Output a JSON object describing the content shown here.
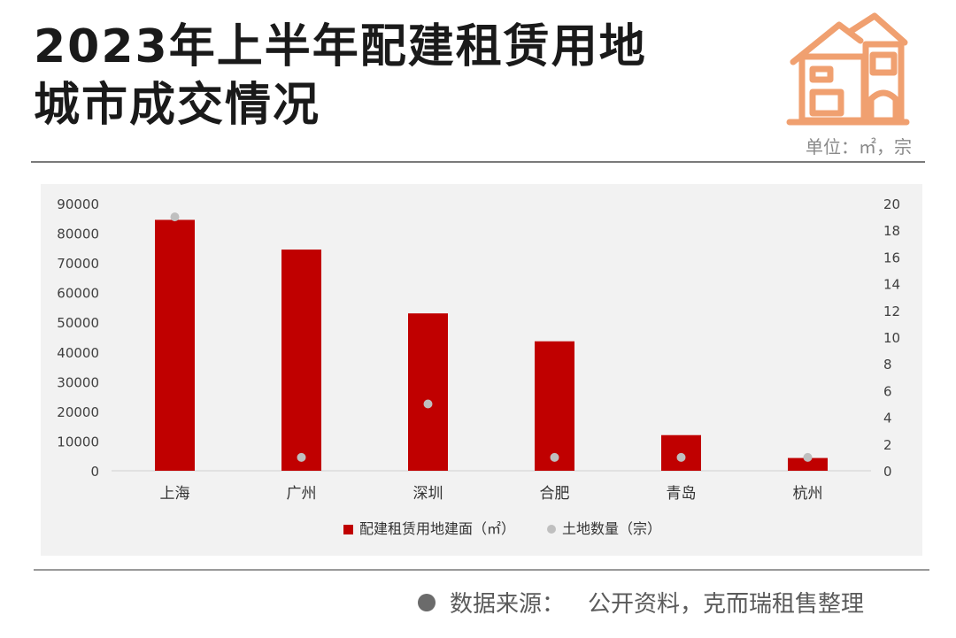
{
  "title": {
    "line1": "2023年上半年配建租赁用地",
    "line2": "城市成交情况"
  },
  "unit_label": "单位：㎡，宗",
  "source": {
    "label": "数据来源：",
    "text": "公开资料，克而瑞租售整理"
  },
  "colors": {
    "bar": "#c00000",
    "point": "#bfbfbf",
    "panel": "#f2f2f2",
    "icon": "#f0a070"
  },
  "icons": [
    "house-icon"
  ],
  "chart_data": {
    "type": "bar",
    "categories": [
      "上海",
      "广州",
      "深圳",
      "合肥",
      "青岛",
      "杭州"
    ],
    "series": [
      {
        "name": "配建租赁用地建面（㎡）",
        "type": "bar",
        "axis": "left",
        "values": [
          84500,
          74500,
          53000,
          43600,
          12000,
          4300
        ]
      },
      {
        "name": "土地数量（宗）",
        "type": "scatter",
        "axis": "right",
        "values": [
          19,
          1,
          5,
          1,
          1,
          1
        ]
      }
    ],
    "y_left": {
      "ylim": [
        0,
        90000
      ],
      "ticks": [
        "0",
        "10000",
        "20000",
        "30000",
        "40000",
        "50000",
        "60000",
        "70000",
        "80000",
        "90000"
      ]
    },
    "y_right": {
      "ylim": [
        0,
        20
      ],
      "ticks": [
        "0",
        "2",
        "4",
        "6",
        "8",
        "10",
        "12",
        "14",
        "16",
        "18",
        "20"
      ]
    },
    "grid": false,
    "legend_position": "bottom"
  }
}
